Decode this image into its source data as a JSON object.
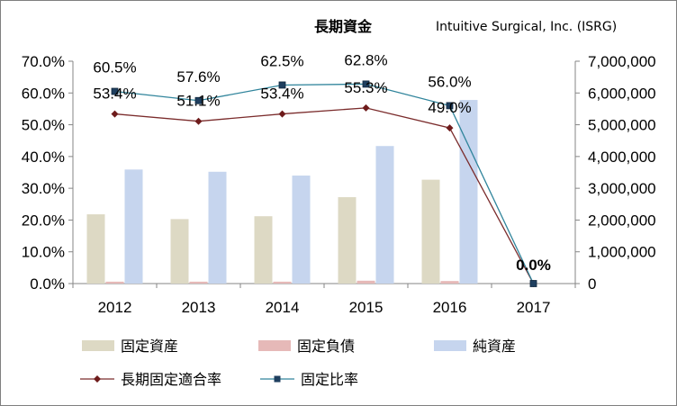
{
  "chart_data": {
    "type": "bar",
    "title": "長期資金",
    "subtitle": "Intuitive Surgical, Inc. (ISRG)",
    "categories": [
      "2012",
      "2013",
      "2014",
      "2015",
      "2016",
      "2017"
    ],
    "left_axis": {
      "min": 0,
      "max": 0.7,
      "step": 0.1,
      "tick_labels": [
        "0.0%",
        "10.0%",
        "20.0%",
        "30.0%",
        "40.0%",
        "50.0%",
        "60.0%",
        "70.0%"
      ]
    },
    "right_axis": {
      "min": 0,
      "max": 7000000,
      "step": 1000000,
      "tick_labels": [
        "0",
        "1,000,000",
        "2,000,000",
        "3,000,000",
        "4,000,000",
        "5,000,000",
        "6,000,000",
        "7,000,000"
      ]
    },
    "bar_series": [
      {
        "name": "固定資産",
        "color": "#ddd9c4",
        "values": [
          2180000,
          2030000,
          2120000,
          2720000,
          3270000,
          0
        ]
      },
      {
        "name": "固定負債",
        "color": "#e6b9b8",
        "values": [
          60000,
          60000,
          60000,
          90000,
          80000,
          0
        ]
      },
      {
        "name": "純資産",
        "color": "#c6d5ee",
        "values": [
          3590000,
          3520000,
          3400000,
          4330000,
          5780000,
          0
        ]
      }
    ],
    "line_series": [
      {
        "name": "長期固定適合率",
        "color": "#7b2c2c",
        "marker": "diamond",
        "values": [
          0.534,
          0.511,
          0.534,
          0.553,
          0.49,
          0.0
        ],
        "labels": [
          "53.4%",
          "51.1%",
          "53.4%",
          "55.3%",
          "49.0%",
          ""
        ]
      },
      {
        "name": "固定比率",
        "color": "#31859c",
        "marker": "square",
        "values": [
          0.605,
          0.576,
          0.625,
          0.628,
          0.56,
          0.0
        ],
        "labels": [
          "60.5%",
          "57.6%",
          "62.5%",
          "62.8%",
          "56.0%",
          "0.0%"
        ]
      }
    ],
    "legend_position": "bottom",
    "gridlines": false
  }
}
